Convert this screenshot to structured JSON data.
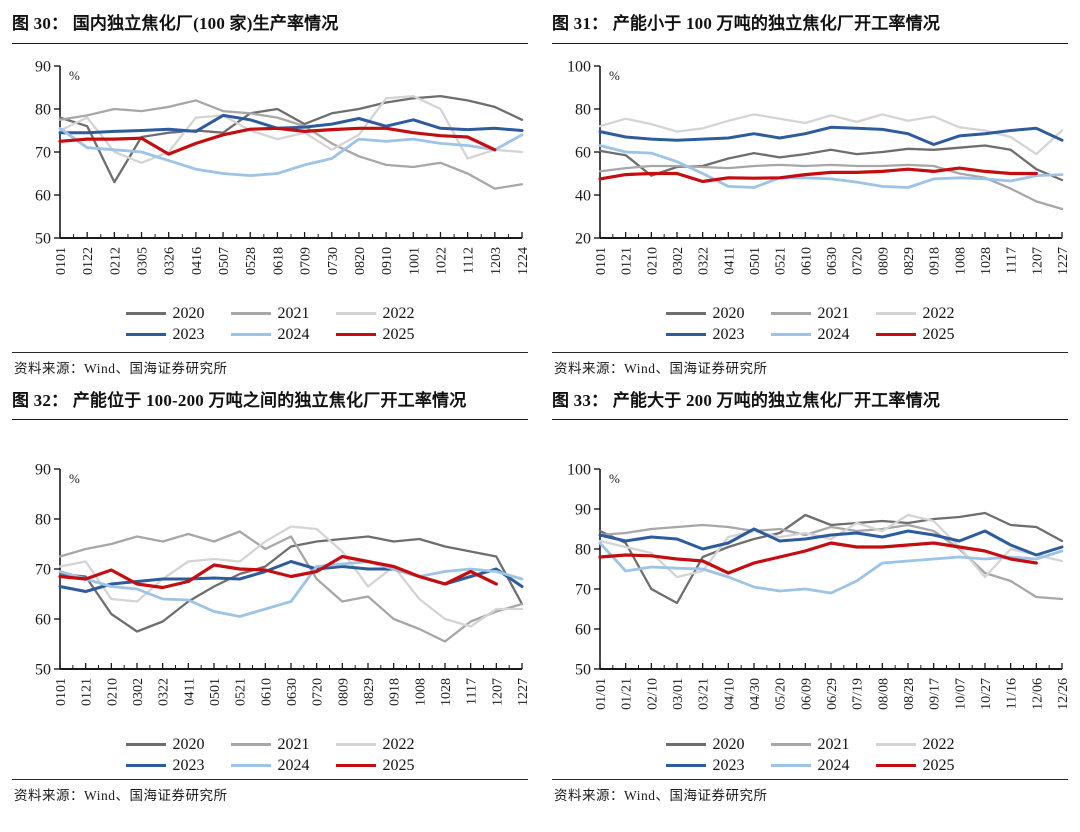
{
  "source_label": "资料来源：Wind、国海证券研究所",
  "legend_rows": [
    [
      "2020",
      "2021",
      "2022"
    ],
    [
      "2023",
      "2024",
      "2025"
    ]
  ],
  "chart_data": [
    {
      "type": "line",
      "title": "图 30：  国内独立焦化厂(100 家)生产率情况",
      "unit": "%",
      "ylim": [
        50,
        90
      ],
      "yticks": [
        50,
        60,
        70,
        80,
        90
      ],
      "legend_position": "bottom",
      "grid": false,
      "categories": [
        "0101",
        "0122",
        "0212",
        "0305",
        "0326",
        "0416",
        "0507",
        "0528",
        "0618",
        "0709",
        "0730",
        "0820",
        "0910",
        "1001",
        "1022",
        "1112",
        "1203",
        "1224"
      ],
      "series": [
        {
          "name": "2020",
          "color": "#6e6e6e",
          "width": 2.3,
          "values": [
            78,
            76,
            63,
            73.5,
            74.5,
            75,
            74.5,
            79,
            80,
            76.5,
            79,
            80,
            81.5,
            82.5,
            83,
            82,
            80.5,
            77.5
          ]
        },
        {
          "name": "2021",
          "color": "#a7a7a7",
          "width": 2.3,
          "values": [
            77.5,
            78.5,
            80,
            79.5,
            80.5,
            82,
            79.5,
            79,
            78,
            76,
            72,
            69,
            67,
            66.5,
            67.5,
            65,
            61.5,
            62.5
          ]
        },
        {
          "name": "2022",
          "color": "#d4d4d4",
          "width": 2.3,
          "values": [
            75,
            78,
            70,
            67.5,
            70,
            78,
            78.5,
            75,
            73,
            74.5,
            70.5,
            74,
            82.5,
            83,
            80,
            68.5,
            70.5,
            70
          ]
        },
        {
          "name": "2023",
          "color": "#2e5b9c",
          "width": 3,
          "values": [
            74.5,
            74.5,
            74.8,
            75,
            75.3,
            74.8,
            78.5,
            77.5,
            75.5,
            75.8,
            76.5,
            77.8,
            76,
            77.5,
            75.5,
            75.2,
            75.5,
            75
          ]
        },
        {
          "name": "2024",
          "color": "#9dc3e6",
          "width": 2.8,
          "values": [
            75.5,
            71,
            70.5,
            70,
            68,
            66,
            65,
            64.5,
            65,
            67,
            68.5,
            73,
            72.5,
            73,
            72,
            71.5,
            70.5,
            74
          ]
        },
        {
          "name": "2025",
          "color": "#c40d11",
          "width": 3.2,
          "values": [
            72.5,
            73,
            73,
            73.2,
            69.5,
            72,
            74,
            75.3,
            75.5,
            74.8,
            75.2,
            75.5,
            75.5,
            74.5,
            73.8,
            73.5,
            70.5,
            null
          ]
        }
      ]
    },
    {
      "type": "line",
      "title": "图 31：  产能小于 100 万吨的独立焦化厂开工率情况",
      "unit": "%",
      "ylim": [
        20,
        100
      ],
      "yticks": [
        20,
        40,
        60,
        80,
        100
      ],
      "legend_position": "bottom",
      "grid": false,
      "categories": [
        "0101",
        "0121",
        "0210",
        "0302",
        "0322",
        "0411",
        "0501",
        "0521",
        "0610",
        "0630",
        "0720",
        "0809",
        "0829",
        "0918",
        "1008",
        "1028",
        "1117",
        "1207",
        "1227"
      ],
      "series": [
        {
          "name": "2020",
          "color": "#6e6e6e",
          "width": 2.3,
          "values": [
            60.5,
            58.5,
            49,
            53,
            53.5,
            57,
            59.5,
            57.5,
            59,
            61,
            59,
            60,
            61.5,
            61,
            62,
            63,
            61,
            52,
            47
          ]
        },
        {
          "name": "2021",
          "color": "#a7a7a7",
          "width": 2.3,
          "values": [
            51,
            52.5,
            53.5,
            53.5,
            53,
            52.5,
            53.5,
            54,
            53.5,
            54,
            53.5,
            53.5,
            54,
            53.5,
            50,
            48,
            43,
            37,
            33.5
          ]
        },
        {
          "name": "2022",
          "color": "#d4d4d4",
          "width": 2.3,
          "values": [
            72,
            75.5,
            73,
            69.5,
            71,
            74.5,
            77.5,
            75.5,
            73.5,
            77,
            74,
            77.5,
            74.5,
            76.5,
            71.5,
            70,
            67,
            59,
            70
          ]
        },
        {
          "name": "2023",
          "color": "#2e5b9c",
          "width": 3,
          "values": [
            69.5,
            67,
            66,
            65.5,
            66,
            66.5,
            68.5,
            66.5,
            68.5,
            71.5,
            71,
            70.5,
            68.5,
            63.5,
            67.5,
            68.5,
            70,
            71,
            65.5
          ]
        },
        {
          "name": "2024",
          "color": "#9dc3e6",
          "width": 2.8,
          "values": [
            63,
            60,
            59.5,
            55.5,
            50,
            44,
            43.5,
            48,
            48,
            47.5,
            46,
            44,
            43.5,
            47.5,
            48,
            47.5,
            46.5,
            49,
            49.5
          ]
        },
        {
          "name": "2025",
          "color": "#c40d11",
          "width": 3.2,
          "values": [
            47.5,
            49.5,
            50,
            50,
            46.3,
            48,
            47.8,
            48,
            49.5,
            50.5,
            50.5,
            51,
            52,
            51,
            52.5,
            51,
            50,
            50,
            null
          ]
        }
      ]
    },
    {
      "type": "line",
      "title": "图 32：  产能位于 100-200 万吨之间的独立焦化厂开工率情况",
      "unit": "%",
      "ylim": [
        50,
        90
      ],
      "yticks": [
        50,
        60,
        70,
        80,
        90
      ],
      "legend_position": "bottom",
      "grid": false,
      "categories": [
        "0101",
        "0121",
        "0210",
        "0302",
        "0322",
        "0411",
        "0501",
        "0521",
        "0610",
        "0630",
        "0720",
        "0809",
        "0829",
        "0918",
        "1008",
        "1028",
        "1117",
        "1207",
        "1227"
      ],
      "series": [
        {
          "name": "2020",
          "color": "#6e6e6e",
          "width": 2.3,
          "values": [
            69,
            68.5,
            61,
            57.5,
            59.5,
            63.5,
            66.5,
            69,
            70.5,
            74.5,
            75.5,
            76,
            76.5,
            75.5,
            76,
            74.5,
            73.5,
            72.5,
            63
          ]
        },
        {
          "name": "2021",
          "color": "#a7a7a7",
          "width": 2.3,
          "values": [
            72.5,
            74,
            75,
            76.5,
            75.5,
            77,
            75.5,
            77.5,
            74,
            76.5,
            68,
            63.5,
            64.5,
            60,
            58,
            55.5,
            59.5,
            61.5,
            63
          ]
        },
        {
          "name": "2022",
          "color": "#d4d4d4",
          "width": 2.3,
          "values": [
            70.5,
            71.5,
            64,
            63.5,
            68,
            71.5,
            72,
            71.5,
            75.5,
            78.5,
            78,
            73.5,
            66.5,
            70.5,
            64,
            60,
            58.5,
            62,
            62
          ]
        },
        {
          "name": "2023",
          "color": "#2e5b9c",
          "width": 3,
          "values": [
            66.5,
            65.5,
            67,
            67.5,
            68,
            68,
            68.2,
            68,
            69.5,
            71.5,
            70,
            70.5,
            70,
            70,
            68.5,
            67,
            68.5,
            70,
            66.5
          ]
        },
        {
          "name": "2024",
          "color": "#9dc3e6",
          "width": 2.8,
          "values": [
            69.5,
            68,
            66.5,
            66,
            64,
            63.8,
            61.5,
            60.5,
            62,
            63.5,
            70.5,
            71,
            71.5,
            70,
            68.5,
            69.5,
            70,
            69.5,
            68
          ]
        },
        {
          "name": "2025",
          "color": "#c40d11",
          "width": 3.2,
          "values": [
            68.5,
            68,
            69.8,
            67,
            66.3,
            67.5,
            70.8,
            70,
            69.8,
            68.5,
            69.5,
            72.5,
            71.5,
            70.5,
            68.5,
            67,
            69.5,
            67,
            null
          ]
        }
      ]
    },
    {
      "type": "line",
      "title": "图 33：  产能大于 200 万吨的独立焦化厂开工率情况",
      "unit": "%",
      "ylim": [
        50,
        100
      ],
      "yticks": [
        50,
        60,
        70,
        80,
        90,
        100
      ],
      "legend_position": "bottom",
      "grid": false,
      "categories": [
        "01/01",
        "01/21",
        "02/10",
        "03/01",
        "03/21",
        "04/10",
        "04/30",
        "05/20",
        "06/09",
        "06/29",
        "07/19",
        "08/08",
        "08/28",
        "09/17",
        "10/07",
        "10/27",
        "11/16",
        "12/06",
        "12/26"
      ],
      "series": [
        {
          "name": "2020",
          "color": "#6e6e6e",
          "width": 2.3,
          "values": [
            84.5,
            81.5,
            70,
            66.5,
            78,
            80.5,
            82.5,
            84,
            88.5,
            86,
            86.5,
            87,
            86.5,
            87.5,
            88,
            89,
            86,
            85.5,
            82
          ]
        },
        {
          "name": "2021",
          "color": "#a7a7a7",
          "width": 2.3,
          "values": [
            83.5,
            84,
            85,
            85.5,
            86,
            85.5,
            84.5,
            85,
            83.5,
            85.5,
            84.5,
            85,
            86,
            84.5,
            80,
            74,
            72,
            68,
            67.5
          ]
        },
        {
          "name": "2022",
          "color": "#d4d4d4",
          "width": 2.3,
          "values": [
            82,
            80.5,
            79,
            73,
            74.5,
            83,
            84.5,
            83,
            84,
            82.5,
            86.5,
            84.5,
            88.5,
            87,
            80.5,
            73,
            80,
            78.5,
            77
          ]
        },
        {
          "name": "2023",
          "color": "#2e5b9c",
          "width": 3,
          "values": [
            83.5,
            82,
            83,
            82.5,
            80,
            81.5,
            85,
            82,
            82.5,
            83.5,
            84,
            83,
            84.5,
            83.5,
            82,
            84.5,
            81,
            78.5,
            80.5
          ]
        },
        {
          "name": "2024",
          "color": "#9dc3e6",
          "width": 2.8,
          "values": [
            81.5,
            74.5,
            75.5,
            75.2,
            75,
            73,
            70.5,
            69.5,
            70,
            69,
            72,
            76.5,
            77,
            77.5,
            78,
            77.5,
            78,
            77.5,
            79.5
          ]
        },
        {
          "name": "2025",
          "color": "#c40d11",
          "width": 3.2,
          "values": [
            78,
            78.5,
            78.3,
            77.5,
            77,
            74,
            76.5,
            78,
            79.5,
            81.5,
            80.5,
            80.5,
            81,
            81.5,
            80.5,
            79.5,
            77.5,
            76.5,
            null
          ]
        }
      ]
    }
  ]
}
